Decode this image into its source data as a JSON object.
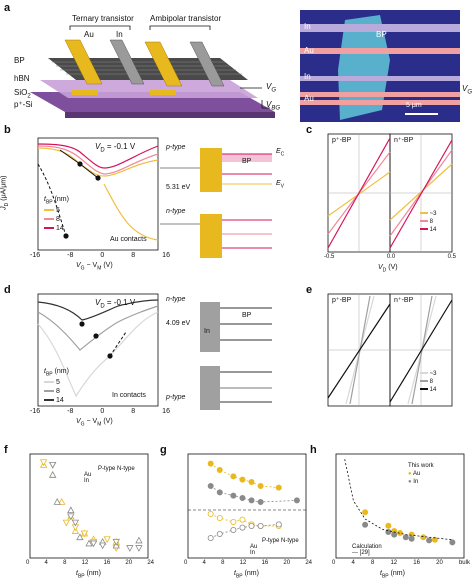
{
  "panels": {
    "a": {
      "label": "a",
      "ternary_label": "Ternary transistor",
      "ambipolar_label": "Ambipolar transistor",
      "au": "Au",
      "in": "In",
      "bp": "BP",
      "hbn": "hBN",
      "sio2": "SiO",
      "sio2_sub": "2",
      "psi": "p⁺-Si",
      "vg": "V",
      "vg_sub": "G",
      "vbg": "V",
      "vbg_sub": "BG"
    },
    "micro": {
      "in1": "In",
      "au1": "Au",
      "in2": "In",
      "au2": "Au",
      "bp": "BP",
      "scale": "5 μm",
      "vg": "V",
      "vg_sub": "G"
    },
    "b": {
      "label": "b",
      "vd": "V",
      "vd_rest": " = -0.1 V",
      "pt_f": "(V",
      "pt_f_rest": ", J",
      "pt_m": "(V",
      "pt_m_rest": ", J",
      "legend_title": "t",
      "legend_sub": "BP",
      "legend_unit": " (nm)",
      "legend": [
        "5",
        "8",
        "14"
      ],
      "contacts": "Au contacts",
      "ylabel": "J",
      "ylabel_rest": " (μA/μm)",
      "xlabel": "V",
      "xlabel_rest": " − V",
      "xlabel_unit": " (V)",
      "xticks": [
        "-16",
        "-8",
        "0",
        "8",
        "16"
      ],
      "yticks": [
        "10⁰",
        "10⁻¹",
        "10⁻²",
        "10⁻³",
        "10⁻⁴",
        "10⁻⁵",
        "10⁻⁶",
        "10⁻⁷"
      ],
      "ptype": "p-type",
      "phi_sbh": "Φ",
      "phi_sbh_sub": "SBH",
      "ec": "E",
      "ec_sub": "C",
      "ev": "E",
      "ev_sub": "V",
      "ef": "J",
      "ef_sub": "F",
      "bp": "BP",
      "au": "Au",
      "phim": "Φ",
      "phim_sub": "m,Au",
      "phim_val": "5.31 eV",
      "ntype": "n-type",
      "jm2": "J",
      "jm2_rest": "/2"
    },
    "c": {
      "label": "c",
      "left_title": "p⁺-BP",
      "right_title": "n⁺-BP",
      "ylabel": "J",
      "ylabel_unit": " (μA/μm)",
      "xlabel": "V",
      "xlabel_unit": " (V)",
      "xticks": [
        "-0.5",
        "0.0",
        "0.5"
      ],
      "yticks": [
        "2",
        "1",
        "0",
        "-1",
        "-2"
      ],
      "legend_title": "t",
      "legend_sub": "BP",
      "legend_unit": " (nm)",
      "legend": [
        "~3",
        "8",
        "14"
      ]
    },
    "d": {
      "label": "d",
      "vd": "V",
      "vd_rest": " = -0.1 V",
      "legend_title": "t",
      "legend_sub": "BP",
      "legend_unit": " (nm)",
      "legend": [
        "5",
        "8",
        "14"
      ],
      "contacts": "In contacts",
      "ylabel": "J",
      "ylabel_rest": " (μA/μm)",
      "xlabel": "V",
      "xlabel_rest": " − V",
      "xlabel_unit": " (V)",
      "xticks": [
        "-16",
        "-8",
        "0",
        "8",
        "16"
      ],
      "yticks": [
        "10⁰",
        "10⁻¹",
        "10⁻²",
        "10⁻³",
        "10⁻⁴",
        "10⁻⁵",
        "10⁻⁶",
        "10⁻⁷"
      ],
      "ntype": "n-type",
      "ptype": "p-type",
      "phim_val": "4.09 eV",
      "in": "In",
      "bp": "BP"
    },
    "e": {
      "label": "e",
      "left_title": "p⁺-BP",
      "right_title": "n⁺-BP",
      "legend": [
        "~3",
        "8",
        "14"
      ]
    },
    "f": {
      "label": "f",
      "ylabel": "I",
      "xlabel": "t",
      "xlabel_sub": "BP",
      "xlabel_unit": " (nm)",
      "xticks": [
        "0",
        "4",
        "8",
        "12",
        "16",
        "20",
        "24"
      ],
      "yticks": [
        "10⁶",
        "10⁵",
        "10⁴",
        "10³",
        "10²",
        "10¹"
      ],
      "legend_cols": [
        "P-type",
        "N-type"
      ],
      "legend_rows": [
        "Au",
        "In"
      ]
    },
    "g": {
      "label": "g",
      "ylabel": "Φ",
      "ylabel_sub": "SBH",
      "ylabel_unit": " (eV)",
      "xlabel": "t",
      "xlabel_sub": "BP",
      "xlabel_unit": " (nm)",
      "xticks": [
        "0",
        "4",
        "8",
        "12",
        "16",
        "20",
        "24"
      ],
      "yticks": [
        "0.6",
        "0.4",
        "0.2",
        "0.0",
        "-0.2",
        "-0.4",
        "-0.6"
      ],
      "legend_cols": [
        "P-type",
        "N-type"
      ],
      "legend_rows": [
        "Au",
        "In"
      ]
    },
    "h": {
      "label": "h",
      "ylabel": "E",
      "ylabel_sub": "g",
      "ylabel_unit": " (eV)",
      "xlabel": "t",
      "xlabel_sub": "BP",
      "xlabel_unit": " (nm)",
      "xticks": [
        "0",
        "4",
        "8",
        "12",
        "16",
        "20",
        "bulk"
      ],
      "yticks": [
        "2.0",
        "1.6",
        "1.2",
        "0.8",
        "0.4",
        "0.0"
      ],
      "this_work": "This work",
      "au": "Au",
      "in": "In",
      "calc": "Calculation",
      "calc_ref": "[29]"
    }
  },
  "colors": {
    "au": "#e8b91e",
    "in": "#8a8a8a",
    "c5": "#f0c040",
    "c8": "#f08a9a",
    "c14": "#d4145a",
    "in5": "#d8d8d8",
    "in8": "#a0a0a0",
    "in14": "#333333",
    "substrate": "#7d4f9c",
    "bp": "#3a3a3a"
  },
  "chart_data": [
    {
      "type": "scatter",
      "panel": "f",
      "ylabel": "I_on / I_off",
      "xlabel": "t_BP (nm)",
      "yscale": "log",
      "xlim": [
        0,
        26
      ],
      "ylim": [
        10,
        1000000
      ],
      "series": [
        {
          "name": "Au P-type",
          "x": [
            3,
            5,
            7,
            9,
            10,
            12,
            14,
            19
          ],
          "y": [
            300000,
            100000,
            5000,
            1000,
            200,
            150,
            80,
            60
          ]
        },
        {
          "name": "Au N-type",
          "x": [
            3,
            5,
            8,
            10,
            12,
            14,
            17,
            19
          ],
          "y": [
            400000,
            300000,
            500,
            300,
            150,
            60,
            80,
            30
          ]
        },
        {
          "name": "In P-type",
          "x": [
            5,
            6,
            9,
            11,
            13,
            16,
            19,
            24
          ],
          "y": [
            100000,
            5000,
            2000,
            100,
            50,
            60,
            40,
            70
          ]
        },
        {
          "name": "In N-type",
          "x": [
            5,
            9,
            10,
            14,
            16,
            19,
            22,
            24
          ],
          "y": [
            300000,
            1000,
            500,
            50,
            40,
            60,
            30,
            30
          ]
        }
      ]
    },
    {
      "type": "line",
      "panel": "g",
      "ylabel": "Φ_SBH (eV)",
      "xlabel": "t_BP (nm)",
      "xlim": [
        0,
        26
      ],
      "ylim": [
        -0.6,
        0.7
      ],
      "series": [
        {
          "name": "Au P-type",
          "x": [
            5,
            7,
            10,
            12,
            14,
            16,
            20
          ],
          "y": [
            -0.05,
            -0.1,
            -0.15,
            -0.12,
            -0.18,
            -0.2,
            -0.2
          ]
        },
        {
          "name": "Au N-type",
          "x": [
            5,
            7,
            10,
            12,
            14,
            16,
            20
          ],
          "y": [
            0.58,
            0.5,
            0.42,
            0.38,
            0.35,
            0.3,
            0.28
          ]
        },
        {
          "name": "In P-type",
          "x": [
            5,
            7,
            10,
            12,
            14,
            16,
            20
          ],
          "y": [
            -0.35,
            -0.3,
            -0.25,
            -0.22,
            -0.2,
            -0.2,
            -0.18
          ]
        },
        {
          "name": "In N-type",
          "x": [
            5,
            7,
            10,
            12,
            14,
            16,
            24
          ],
          "y": [
            0.3,
            0.22,
            0.18,
            0.15,
            0.12,
            0.1,
            0.12
          ]
        }
      ]
    },
    {
      "type": "scatter",
      "panel": "h",
      "ylabel": "E_g (eV)",
      "xlabel": "t_BP (nm)",
      "xlim": [
        0,
        22
      ],
      "ylim": [
        0,
        2.0
      ],
      "series": [
        {
          "name": "Au",
          "x": [
            5,
            9,
            10,
            11,
            13,
            15,
            17
          ],
          "y": [
            0.88,
            0.62,
            0.52,
            0.48,
            0.45,
            0.4,
            0.35
          ]
        },
        {
          "name": "In",
          "x": [
            5,
            9,
            10,
            12,
            13,
            16,
            20
          ],
          "y": [
            0.64,
            0.5,
            0.45,
            0.4,
            0.37,
            0.34,
            0.3
          ]
        },
        {
          "name": "Calculation",
          "x": [
            1.5,
            3,
            5,
            8,
            12,
            16,
            20
          ],
          "y": [
            1.9,
            1.1,
            0.75,
            0.55,
            0.45,
            0.4,
            0.35
          ]
        }
      ]
    }
  ]
}
